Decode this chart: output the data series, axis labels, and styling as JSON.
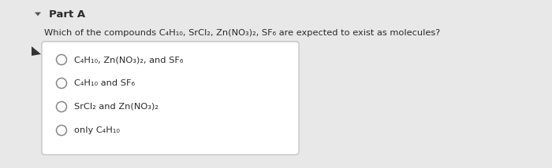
{
  "title": "Part A",
  "question": "Which of the compounds C₄H₁₀, SrCl₂, Zn(NO₃)₂, SF₆ are expected to exist as molecules?",
  "options": [
    "C₄H₁₀, Zn(NO₃)₂, and SF₆",
    "C₄H₁₀ and SF₆",
    "SrCl₂ and Zn(NO₃)₂",
    "only C₄H₁₀"
  ],
  "bg_color": "#e8e8e8",
  "panel_color": "#f5f5f5",
  "box_color": "#ffffff",
  "text_color": "#2a2a2a",
  "title_color": "#2a2a2a",
  "circle_edge_color": "#888888",
  "triangle_color": "#555555",
  "cursor_color": "#333333"
}
